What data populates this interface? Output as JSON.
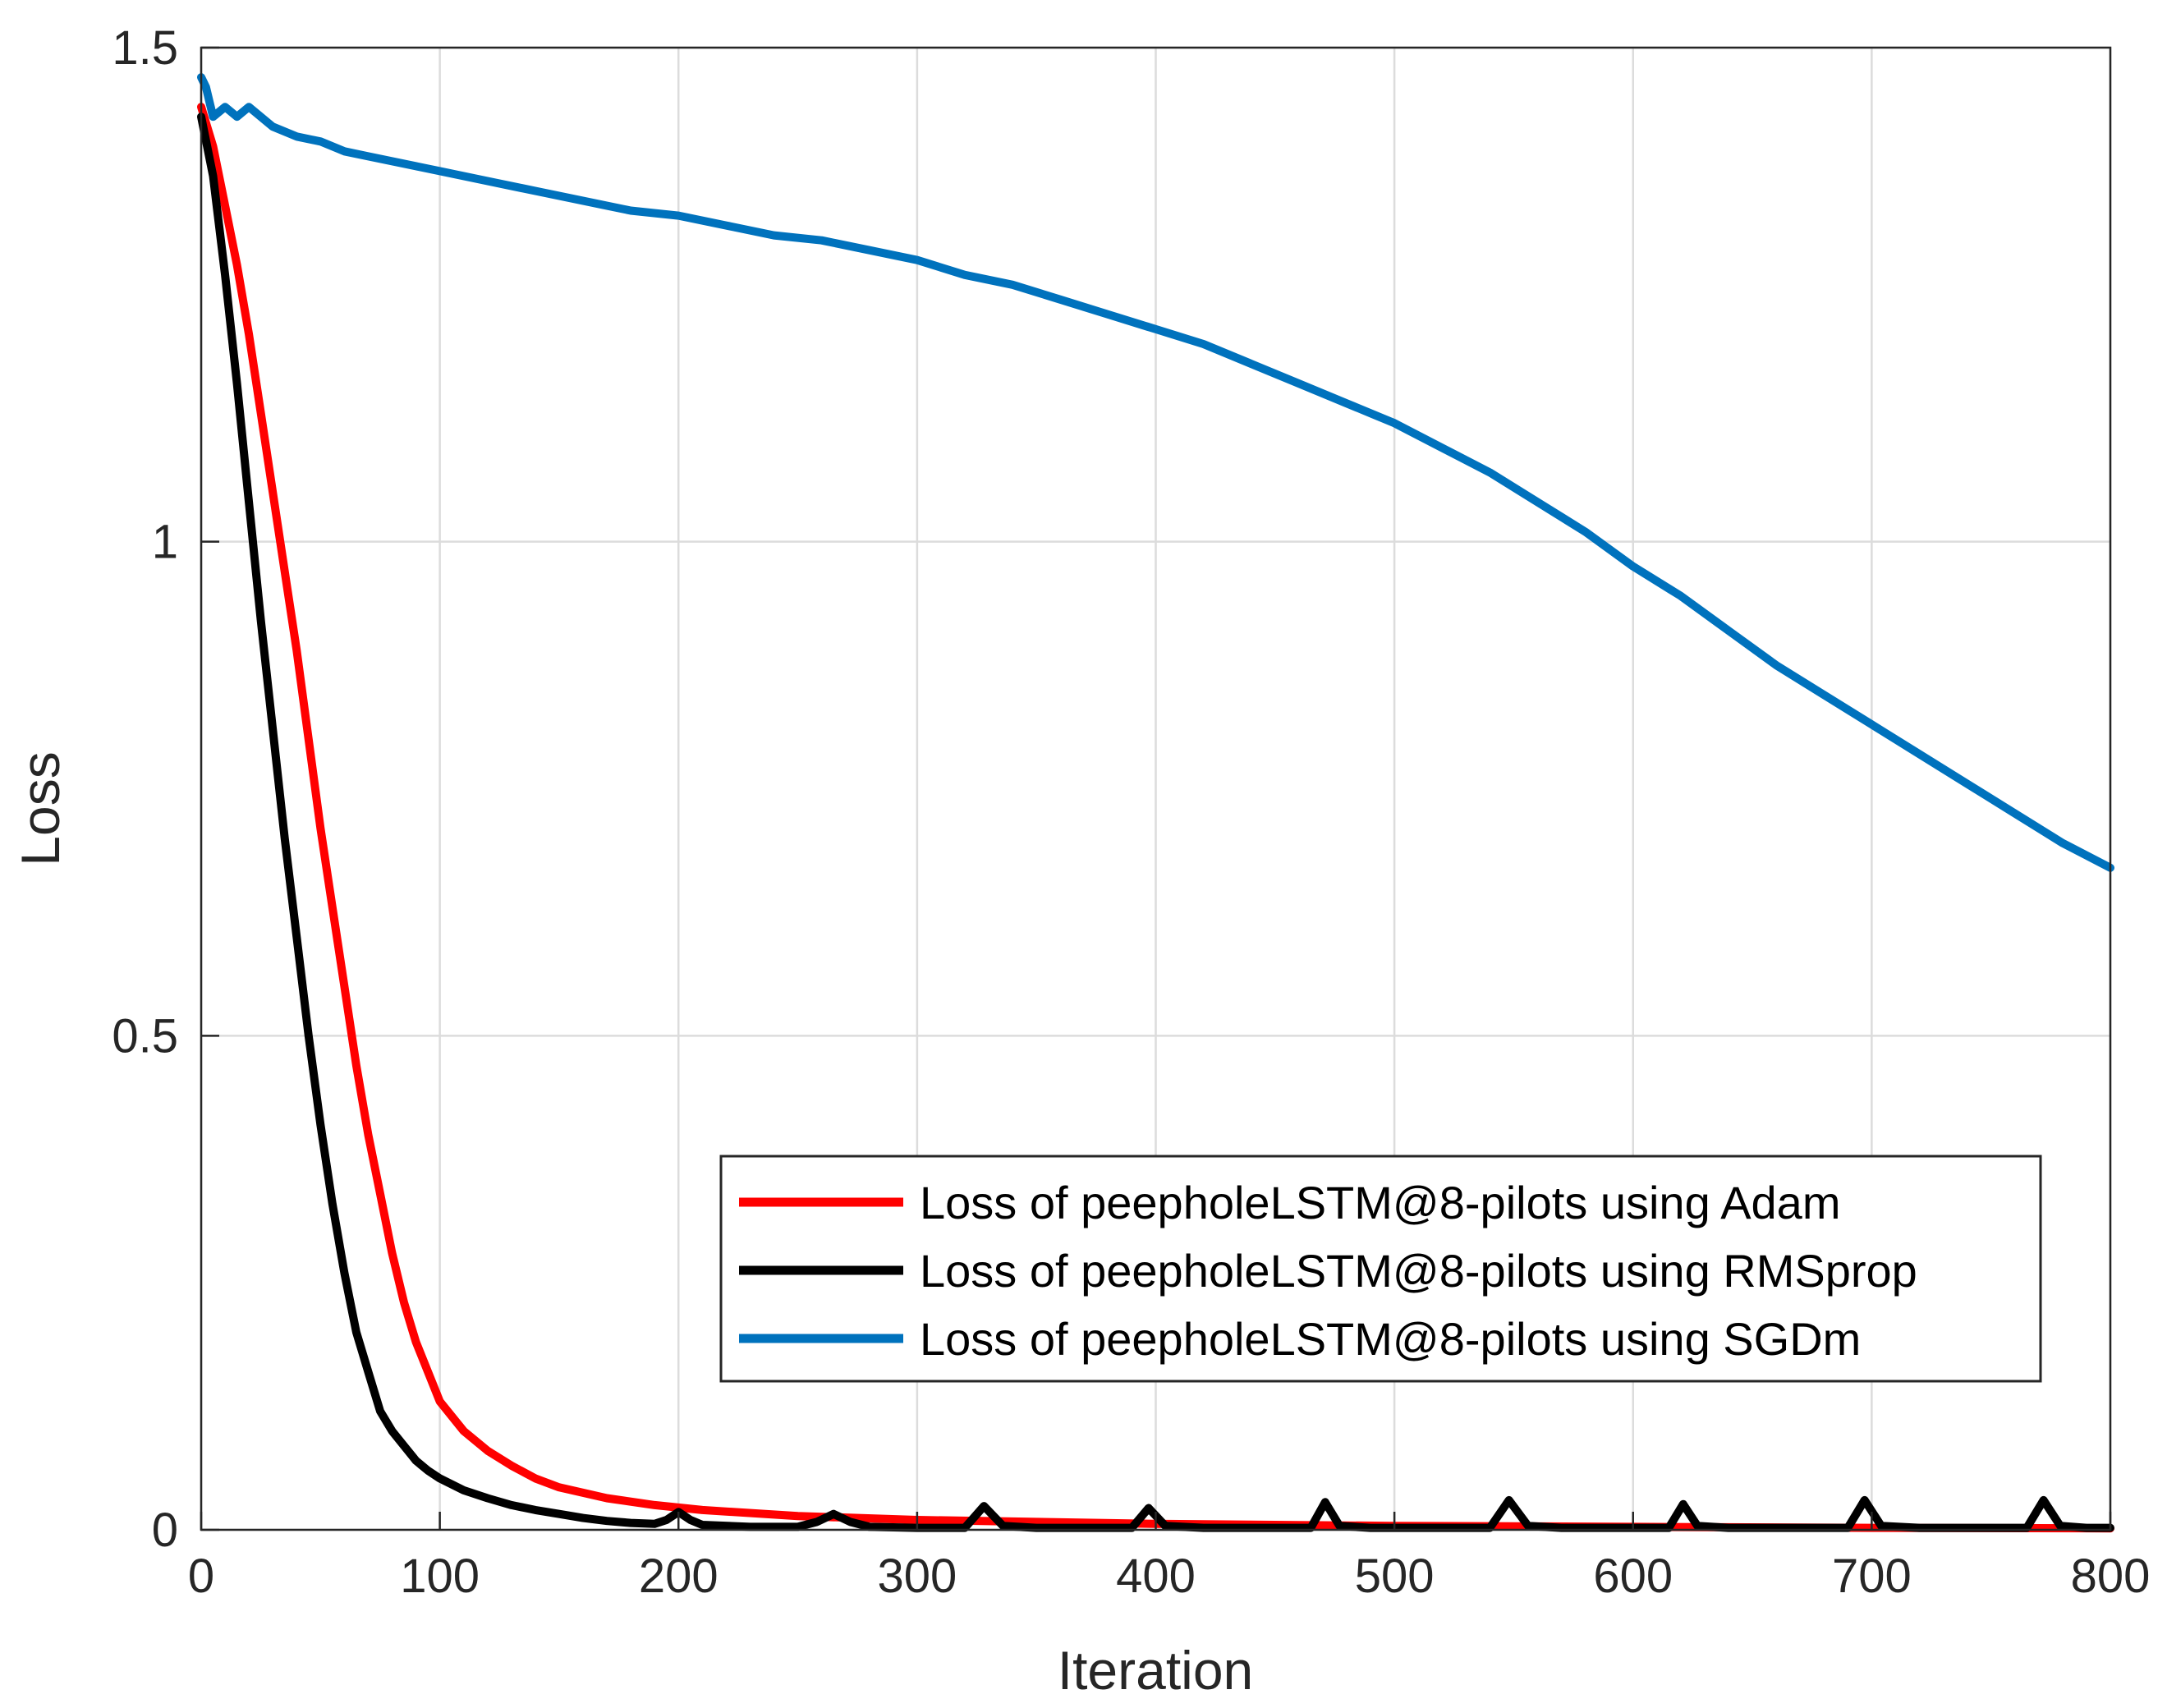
{
  "chart_data": {
    "type": "line",
    "title": "",
    "xlabel": "Iteration",
    "ylabel": "Loss",
    "xlim": [
      0,
      800
    ],
    "ylim": [
      0,
      1.5
    ],
    "xticks": [
      0,
      100,
      200,
      300,
      400,
      500,
      600,
      700,
      800
    ],
    "xtick_labels": [
      "0",
      "100",
      "200",
      "300",
      "400",
      "500",
      "600",
      "700",
      "800"
    ],
    "yticks": [
      0,
      0.5,
      1,
      1.5
    ],
    "ytick_labels": [
      "0",
      "0.5",
      "1",
      "1.5"
    ],
    "grid": true,
    "legend_position": "lower-right",
    "series": [
      {
        "name": "Loss of peepholeLSTM@8-pilots using Adam",
        "color": "#ff0000",
        "x": [
          0,
          5,
          10,
          15,
          20,
          25,
          30,
          35,
          40,
          45,
          50,
          55,
          60,
          65,
          70,
          75,
          80,
          85,
          90,
          95,
          100,
          110,
          120,
          130,
          140,
          150,
          170,
          190,
          210,
          250,
          300,
          400,
          500,
          600,
          700,
          800
        ],
        "y": [
          1.44,
          1.4,
          1.34,
          1.28,
          1.21,
          1.13,
          1.05,
          0.97,
          0.89,
          0.8,
          0.71,
          0.63,
          0.55,
          0.47,
          0.4,
          0.34,
          0.28,
          0.23,
          0.19,
          0.16,
          0.13,
          0.1,
          0.08,
          0.065,
          0.052,
          0.043,
          0.032,
          0.025,
          0.02,
          0.014,
          0.01,
          0.006,
          0.004,
          0.003,
          0.002,
          0.0015
        ]
      },
      {
        "name": "Loss of peepholeLSTM@8-pilots using RMSprop",
        "color": "#000000",
        "x": [
          0,
          5,
          10,
          15,
          20,
          25,
          30,
          35,
          40,
          45,
          50,
          55,
          60,
          65,
          70,
          75,
          80,
          85,
          90,
          95,
          100,
          110,
          120,
          130,
          140,
          150,
          160,
          170,
          180,
          190,
          195,
          200,
          205,
          210,
          230,
          250,
          258,
          265,
          272,
          280,
          300,
          320,
          328,
          336,
          350,
          390,
          397,
          404,
          420,
          465,
          471,
          477,
          490,
          540,
          548,
          556,
          570,
          615,
          621,
          627,
          640,
          690,
          697,
          704,
          720,
          765,
          772,
          779,
          790,
          800
        ],
        "y": [
          1.43,
          1.37,
          1.27,
          1.16,
          1.04,
          0.92,
          0.81,
          0.7,
          0.6,
          0.5,
          0.41,
          0.33,
          0.26,
          0.2,
          0.16,
          0.12,
          0.1,
          0.085,
          0.07,
          0.06,
          0.052,
          0.04,
          0.032,
          0.025,
          0.02,
          0.016,
          0.012,
          0.009,
          0.007,
          0.006,
          0.01,
          0.018,
          0.01,
          0.005,
          0.003,
          0.003,
          0.008,
          0.016,
          0.008,
          0.003,
          0.002,
          0.002,
          0.024,
          0.004,
          0.002,
          0.002,
          0.022,
          0.004,
          0.002,
          0.002,
          0.028,
          0.004,
          0.002,
          0.002,
          0.03,
          0.004,
          0.002,
          0.002,
          0.026,
          0.004,
          0.002,
          0.002,
          0.03,
          0.004,
          0.002,
          0.002,
          0.03,
          0.004,
          0.002,
          0.002
        ]
      },
      {
        "name": "Loss of peepholeLSTM@8-pilots using SGDm",
        "color": "#0072bd",
        "x": [
          0,
          2,
          5,
          10,
          15,
          20,
          30,
          40,
          50,
          60,
          70,
          80,
          90,
          100,
          120,
          140,
          160,
          180,
          200,
          220,
          240,
          260,
          280,
          300,
          320,
          340,
          360,
          380,
          400,
          420,
          440,
          460,
          480,
          500,
          520,
          540,
          560,
          580,
          600,
          620,
          640,
          660,
          680,
          700,
          720,
          740,
          760,
          780,
          800
        ],
        "y": [
          1.47,
          1.46,
          1.43,
          1.44,
          1.43,
          1.44,
          1.42,
          1.41,
          1.405,
          1.395,
          1.39,
          1.385,
          1.38,
          1.375,
          1.365,
          1.355,
          1.345,
          1.335,
          1.33,
          1.32,
          1.31,
          1.305,
          1.295,
          1.285,
          1.27,
          1.26,
          1.245,
          1.23,
          1.215,
          1.2,
          1.18,
          1.16,
          1.14,
          1.12,
          1.095,
          1.07,
          1.04,
          1.01,
          0.975,
          0.945,
          0.91,
          0.875,
          0.845,
          0.815,
          0.785,
          0.755,
          0.725,
          0.695,
          0.67
        ]
      }
    ]
  }
}
